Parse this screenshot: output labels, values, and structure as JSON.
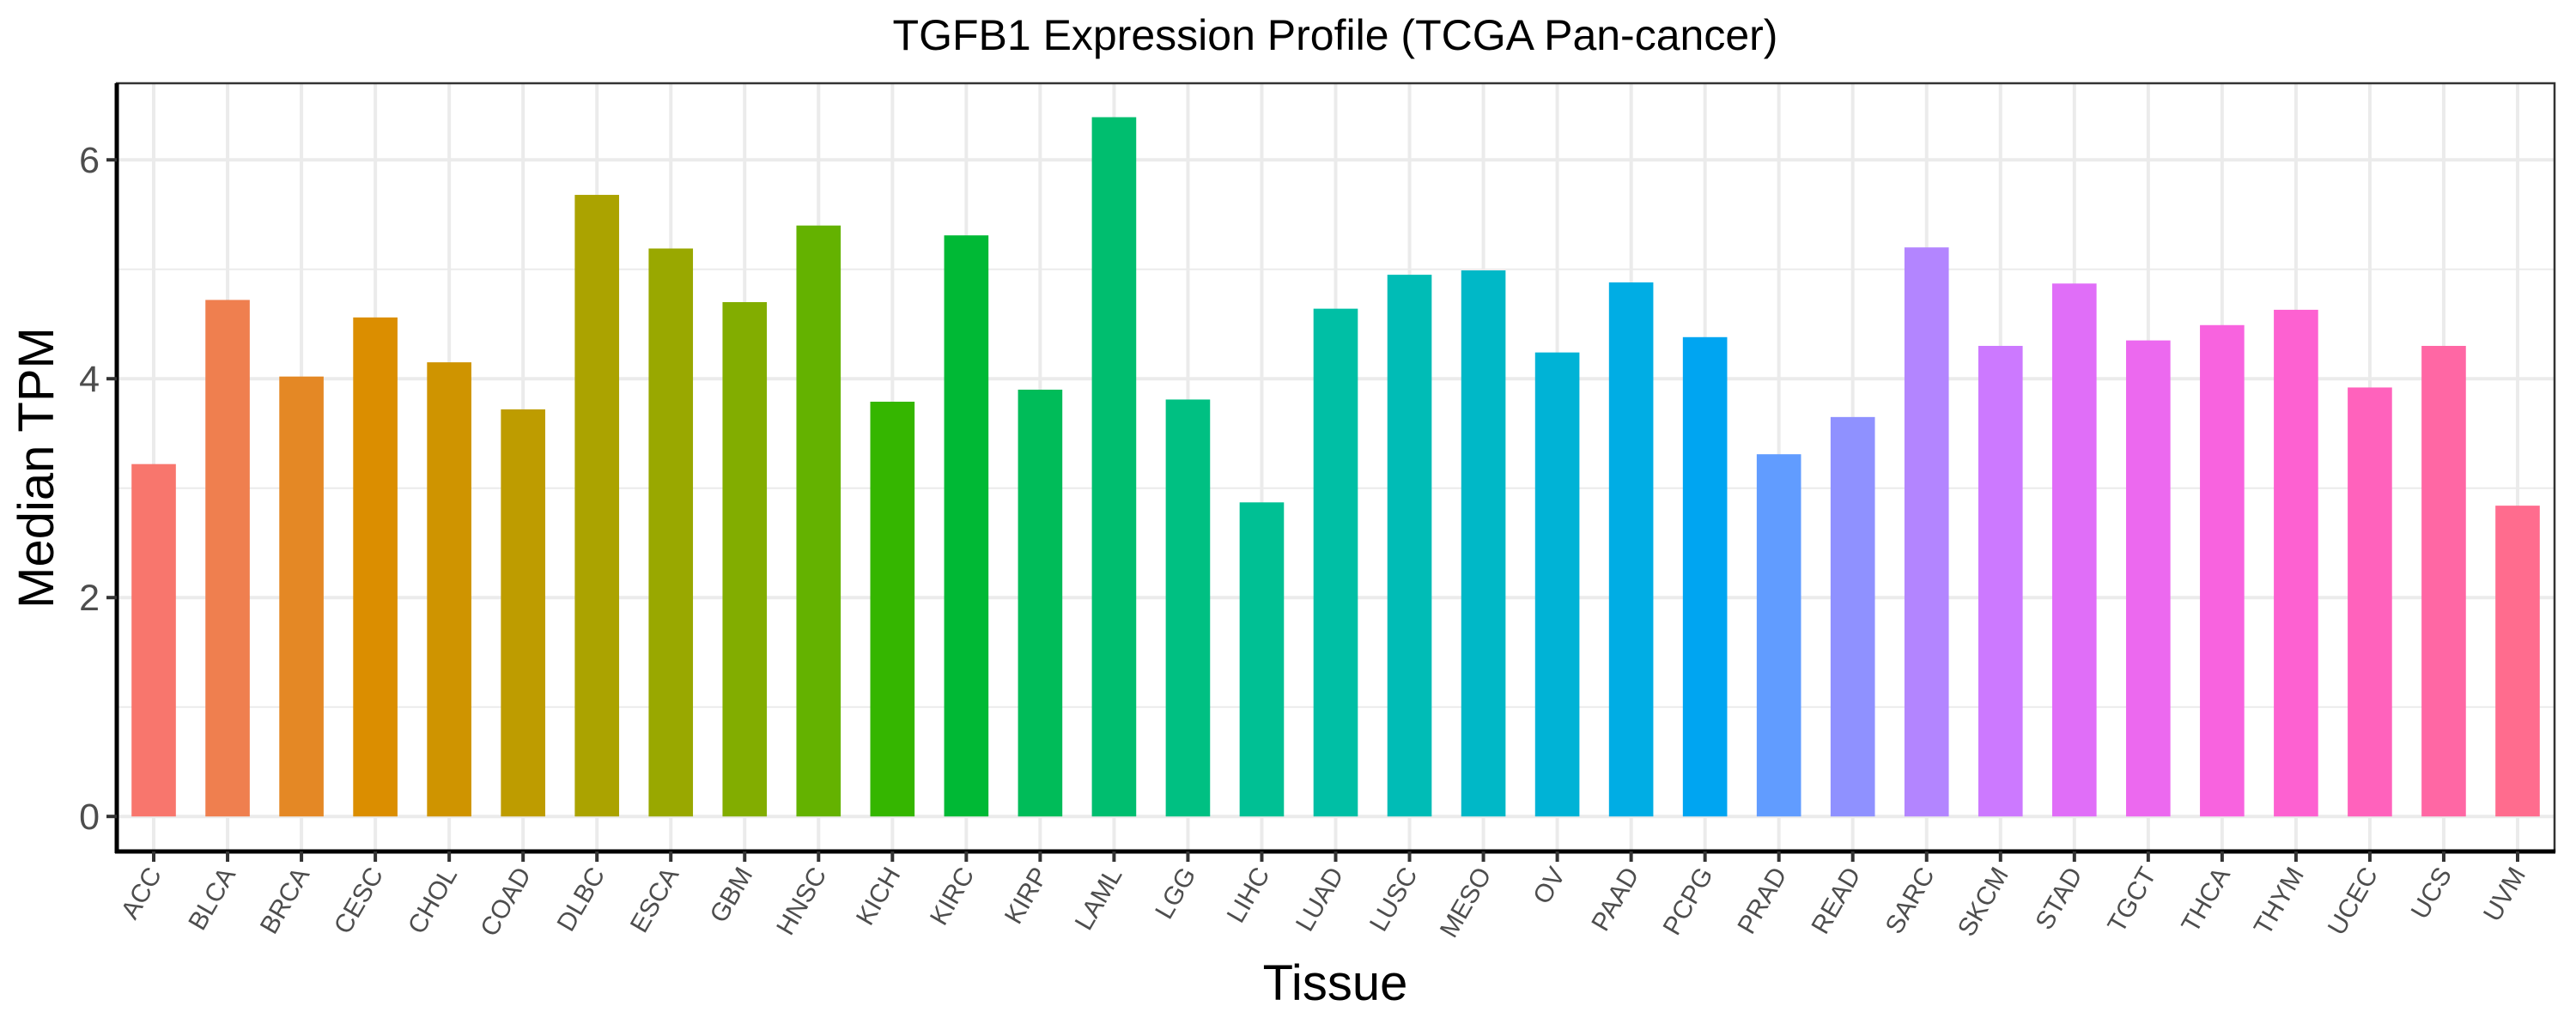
{
  "chart_data": {
    "type": "bar",
    "title": "TGFB1 Expression Profile (TCGA Pan-cancer)",
    "xlabel": "Tissue",
    "ylabel": "Median TPM",
    "ylim": [
      -0.32,
      6.7
    ],
    "yticks": [
      0,
      2,
      4,
      6
    ],
    "grid": true,
    "legend": "none",
    "categories": [
      "ACC",
      "BLCA",
      "BRCA",
      "CESC",
      "CHOL",
      "COAD",
      "DLBC",
      "ESCA",
      "GBM",
      "HNSC",
      "KICH",
      "KIRC",
      "KIRP",
      "LAML",
      "LGG",
      "LIHC",
      "LUAD",
      "LUSC",
      "MESO",
      "OV",
      "PAAD",
      "PCPG",
      "PRAD",
      "READ",
      "SARC",
      "SKCM",
      "STAD",
      "TGCT",
      "THCA",
      "THYM",
      "UCEC",
      "UCS",
      "UVM"
    ],
    "values": [
      3.22,
      4.72,
      4.02,
      4.56,
      4.15,
      3.72,
      5.68,
      5.19,
      4.7,
      5.4,
      3.79,
      5.31,
      3.9,
      6.39,
      3.81,
      2.87,
      4.64,
      4.95,
      4.99,
      4.24,
      4.88,
      4.38,
      3.31,
      3.65,
      5.2,
      4.3,
      4.87,
      4.35,
      4.49,
      4.63,
      3.92,
      4.3,
      2.84
    ],
    "colors": [
      "#F8766D",
      "#EF7F4F",
      "#E48825",
      "#DB8E00",
      "#CF9400",
      "#BE9C00",
      "#ABA300",
      "#99A800",
      "#82AD00",
      "#64B200",
      "#35B600",
      "#00B935",
      "#00BC59",
      "#00BE6F",
      "#00C082",
      "#00C094",
      "#00BFA5",
      "#00BCB6",
      "#00B8C7",
      "#00B3D6",
      "#00ADE4",
      "#00A5F1",
      "#619CFF",
      "#8F91FF",
      "#B385FF",
      "#CC79FF",
      "#E06EF8",
      "#EC69EF",
      "#F863DF",
      "#FD61D1",
      "#FF62BC",
      "#FF67A4",
      "#FF6C8E"
    ]
  }
}
